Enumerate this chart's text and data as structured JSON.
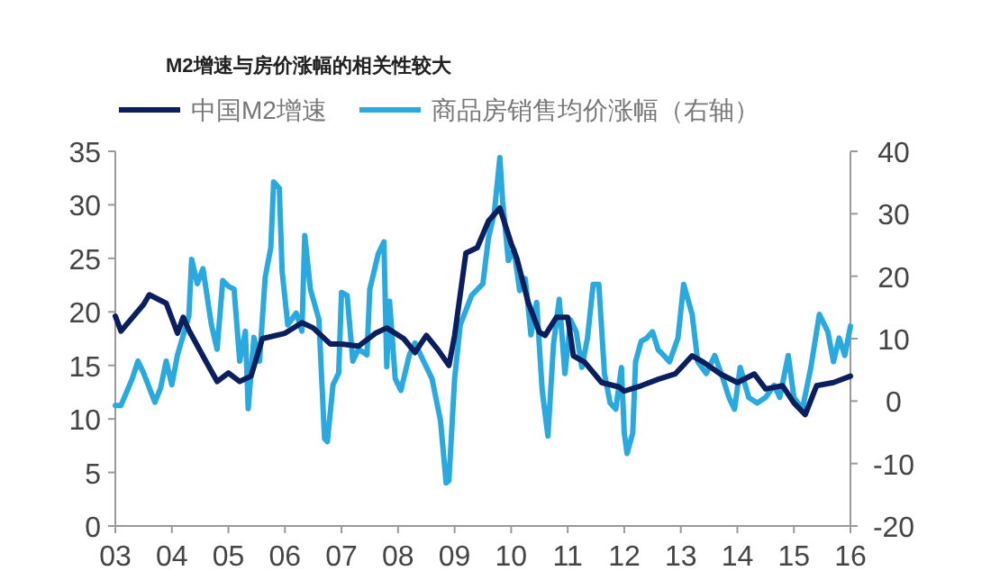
{
  "chart_data": {
    "type": "line",
    "title": "M2增速与房价涨幅的相关性较大",
    "xlim": [
      2003,
      2016
    ],
    "xticks": [
      {
        "value": 2003,
        "label": "03"
      },
      {
        "value": 2004,
        "label": "04"
      },
      {
        "value": 2005,
        "label": "05"
      },
      {
        "value": 2006,
        "label": "06"
      },
      {
        "value": 2007,
        "label": "07"
      },
      {
        "value": 2008,
        "label": "08"
      },
      {
        "value": 2009,
        "label": "09"
      },
      {
        "value": 2010,
        "label": "10"
      },
      {
        "value": 2011,
        "label": "11"
      },
      {
        "value": 2012,
        "label": "12"
      },
      {
        "value": 2013,
        "label": "13"
      },
      {
        "value": 2014,
        "label": "14"
      },
      {
        "value": 2015,
        "label": "15"
      },
      {
        "value": 2016,
        "label": "16"
      }
    ],
    "ylim": [
      0,
      35
    ],
    "yticks": [
      0,
      5,
      10,
      15,
      20,
      25,
      30,
      35
    ],
    "y2lim": [
      -20,
      40
    ],
    "y2ticks": [
      -20,
      -10,
      0,
      10,
      20,
      30,
      40
    ],
    "grid": false,
    "legend": "top",
    "line_style": "solid",
    "marker": "none",
    "series": [
      {
        "name": "中国M2增速",
        "color": "#0b1f5e",
        "x": [
          2003.0,
          2003.1,
          2003.5,
          2003.6,
          2003.9,
          2004.1,
          2004.2,
          2004.3,
          2004.6,
          2004.8,
          2005.0,
          2005.2,
          2005.4,
          2005.6,
          2006.0,
          2006.3,
          2006.5,
          2006.8,
          2007.0,
          2007.3,
          2007.6,
          2007.8,
          2008.1,
          2008.3,
          2008.5,
          2008.7,
          2008.9,
          2009.0,
          2009.2,
          2009.4,
          2009.6,
          2009.8,
          2010.0,
          2010.1,
          2010.3,
          2010.5,
          2010.6,
          2010.8,
          2011.0,
          2011.1,
          2011.3,
          2011.6,
          2011.9,
          2012.0,
          2012.3,
          2012.6,
          2012.9,
          2013.2,
          2013.4,
          2013.7,
          2014.0,
          2014.3,
          2014.5,
          2014.8,
          2015.0,
          2015.2,
          2015.4,
          2015.7,
          2016.0
        ],
        "values": [
          19.6,
          18.2,
          20.7,
          21.6,
          20.8,
          18,
          19.5,
          18.3,
          15.4,
          13.5,
          14.3,
          13.5,
          14,
          17.5,
          18,
          19,
          18.5,
          17,
          17,
          16.8,
          18,
          18.5,
          17.5,
          16.2,
          17.8,
          16.5,
          15,
          17.8,
          25.5,
          26,
          28.5,
          29.7,
          26.4,
          25,
          20.9,
          18.1,
          17.8,
          19.5,
          19.5,
          15.9,
          15.3,
          13.4,
          13,
          12.6,
          13.1,
          13.7,
          14.2,
          15.9,
          15.3,
          14.2,
          13.4,
          14.2,
          12.8,
          13.1,
          11.5,
          10.4,
          13.1,
          13.4,
          14
        ]
      },
      {
        "name": "商品房销售均价涨幅（右轴）",
        "color": "#2aa9df",
        "axis": "y2",
        "x": [
          2003.0,
          2003.1,
          2003.3,
          2003.4,
          2003.5,
          2003.7,
          2003.8,
          2003.9,
          2004.0,
          2004.1,
          2004.3,
          2004.35,
          2004.45,
          2004.55,
          2004.7,
          2004.8,
          2004.9,
          2005.0,
          2005.1,
          2005.2,
          2005.3,
          2005.35,
          2005.45,
          2005.55,
          2005.65,
          2005.75,
          2005.8,
          2005.9,
          2005.95,
          2006.05,
          2006.2,
          2006.3,
          2006.35,
          2006.45,
          2006.6,
          2006.7,
          2006.75,
          2006.85,
          2006.95,
          2007.0,
          2007.1,
          2007.2,
          2007.3,
          2007.45,
          2007.5,
          2007.65,
          2007.75,
          2007.8,
          2007.85,
          2007.95,
          2008.05,
          2008.2,
          2008.3,
          2008.45,
          2008.6,
          2008.75,
          2008.85,
          2008.9,
          2009.0,
          2009.1,
          2009.3,
          2009.5,
          2009.6,
          2009.7,
          2009.8,
          2009.85,
          2009.95,
          2010.05,
          2010.15,
          2010.25,
          2010.35,
          2010.45,
          2010.55,
          2010.65,
          2010.75,
          2010.85,
          2010.95,
          2011.05,
          2011.15,
          2011.25,
          2011.35,
          2011.45,
          2011.55,
          2011.65,
          2011.75,
          2011.85,
          2011.95,
          2012.0,
          2012.05,
          2012.15,
          2012.2,
          2012.3,
          2012.4,
          2012.5,
          2012.6,
          2012.7,
          2012.8,
          2012.95,
          2013.05,
          2013.2,
          2013.3,
          2013.45,
          2013.6,
          2013.75,
          2013.85,
          2013.95,
          2014.05,
          2014.2,
          2014.35,
          2014.5,
          2014.65,
          2014.75,
          2014.9,
          2015.0,
          2015.15,
          2015.3,
          2015.45,
          2015.6,
          2015.7,
          2015.8,
          2015.9,
          2016.0
        ],
        "values": [
          -0.7,
          -0.7,
          3.6,
          6.4,
          4.5,
          -0.2,
          2.1,
          6.4,
          2.6,
          7.4,
          13.6,
          22.7,
          18.8,
          21.2,
          12.2,
          8.3,
          19.3,
          18.4,
          17.9,
          6.4,
          11.2,
          -1.2,
          10.2,
          6.4,
          19.8,
          24.6,
          35.1,
          34.1,
          20.8,
          12.2,
          14.1,
          11.2,
          26.5,
          17.9,
          13.1,
          -6,
          -6.5,
          2.6,
          4.5,
          17.4,
          16.9,
          6.4,
          8.3,
          7.4,
          17.9,
          23.6,
          25.5,
          5.5,
          16,
          3.6,
          1.7,
          7.4,
          9.3,
          6.4,
          3.6,
          -3.1,
          -13.1,
          -12.7,
          3.6,
          12.2,
          16.9,
          18.8,
          26.2,
          30,
          39,
          32,
          22.5,
          24.3,
          17.7,
          19.6,
          10.6,
          15.8,
          1.6,
          -5.6,
          9.2,
          16.3,
          4.4,
          13,
          11.1,
          5.4,
          10.1,
          18.7,
          18.7,
          4.4,
          -0.3,
          -1.3,
          5.4,
          -5.1,
          -8.4,
          -5.1,
          6.3,
          9.6,
          10.1,
          11.1,
          8.2,
          7.3,
          6.3,
          10.1,
          18.7,
          13.9,
          6.3,
          4.4,
          7.3,
          3.5,
          0.6,
          -1.3,
          5.4,
          0.6,
          -0.3,
          0.6,
          2.5,
          0.6,
          7.3,
          0.6,
          -1.3,
          5.4,
          13.9,
          11.1,
          6.3,
          10.1,
          7.3,
          12
        ]
      }
    ]
  }
}
